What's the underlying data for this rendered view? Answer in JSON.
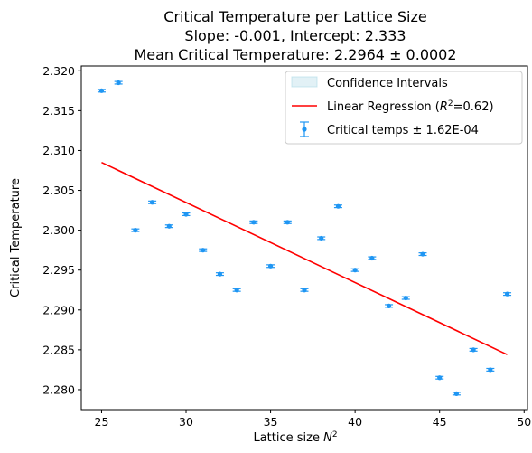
{
  "chart_data": {
    "type": "scatter",
    "title": [
      "Critical Temperature per Lattice Size",
      "Slope: -0.001, Intercept: 2.333",
      "Mean Critical Temperature: 2.2964 ± 0.0002"
    ],
    "xlabel": "Lattice size N²",
    "ylabel": "Critical Temperature",
    "xlim": [
      23.8,
      50.2
    ],
    "ylim": [
      2.2775,
      2.3206
    ],
    "xticks": [
      25,
      30,
      35,
      40,
      45,
      50
    ],
    "xtick_labels": [
      "25",
      "30",
      "35",
      "40",
      "45",
      "50"
    ],
    "yticks": [
      2.28,
      2.285,
      2.29,
      2.295,
      2.3,
      2.305,
      2.31,
      2.315,
      2.32
    ],
    "ytick_labels": [
      "2.280",
      "2.285",
      "2.290",
      "2.295",
      "2.300",
      "2.305",
      "2.310",
      "2.315",
      "2.320"
    ],
    "grid": false,
    "legend_position": "top-right",
    "series": [
      {
        "name": "Critical temps ± 1.62E-04",
        "kind": "errorbar",
        "color": "#1f96f3",
        "x": [
          25,
          26,
          27,
          28,
          29,
          30,
          31,
          32,
          33,
          34,
          35,
          36,
          37,
          38,
          39,
          40,
          41,
          42,
          43,
          44,
          45,
          46,
          47,
          48,
          49
        ],
        "y": [
          2.3175,
          2.3185,
          2.3,
          2.3035,
          2.3005,
          2.302,
          2.2975,
          2.2945,
          2.2925,
          2.301,
          2.2955,
          2.301,
          2.2925,
          2.299,
          2.303,
          2.295,
          2.2965,
          2.2905,
          2.2915,
          2.297,
          2.2815,
          2.2795,
          2.285,
          2.2825,
          2.292
        ],
        "yerr": 0.000162
      },
      {
        "name": "Linear Regression (R²=0.62)",
        "kind": "line",
        "color": "#ff0000",
        "x": [
          25,
          49
        ],
        "y": [
          2.3085,
          2.2844
        ]
      },
      {
        "name": "Confidence Intervals",
        "kind": "band",
        "color": "#add8e6"
      }
    ]
  }
}
